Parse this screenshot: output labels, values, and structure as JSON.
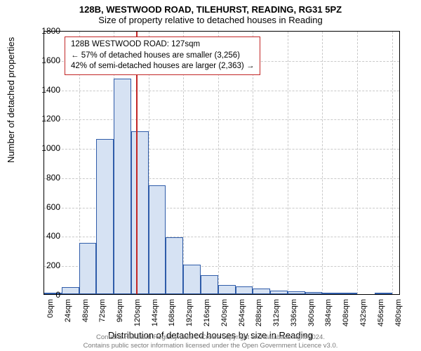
{
  "title": "128B, WESTWOOD ROAD, TILEHURST, READING, RG31 5PZ",
  "subtitle": "Size of property relative to detached houses in Reading",
  "ylabel": "Number of detached properties",
  "xlabel": "Distribution of detached houses by size in Reading",
  "chart": {
    "type": "histogram",
    "ylim_min": 0,
    "ylim_max": 1800,
    "ytick_step": 200,
    "yticks": [
      0,
      200,
      400,
      600,
      800,
      1000,
      1200,
      1400,
      1600,
      1800
    ],
    "xlim_min": 0,
    "xlim_max": 492,
    "xticks": [
      0,
      24,
      48,
      72,
      96,
      120,
      144,
      168,
      192,
      216,
      240,
      264,
      288,
      312,
      336,
      360,
      384,
      408,
      432,
      456,
      480
    ],
    "xtick_labels": [
      "0sqm",
      "24sqm",
      "48sqm",
      "72sqm",
      "96sqm",
      "120sqm",
      "144sqm",
      "168sqm",
      "192sqm",
      "216sqm",
      "240sqm",
      "264sqm",
      "288sqm",
      "312sqm",
      "336sqm",
      "360sqm",
      "384sqm",
      "408sqm",
      "432sqm",
      "456sqm",
      "480sqm"
    ],
    "bin_width": 24,
    "bars": [
      {
        "x0": 0,
        "count": 10
      },
      {
        "x0": 24,
        "count": 50
      },
      {
        "x0": 48,
        "count": 350
      },
      {
        "x0": 72,
        "count": 1060
      },
      {
        "x0": 96,
        "count": 1470
      },
      {
        "x0": 120,
        "count": 1110
      },
      {
        "x0": 144,
        "count": 740
      },
      {
        "x0": 168,
        "count": 390
      },
      {
        "x0": 192,
        "count": 200
      },
      {
        "x0": 216,
        "count": 130
      },
      {
        "x0": 240,
        "count": 60
      },
      {
        "x0": 264,
        "count": 55
      },
      {
        "x0": 288,
        "count": 40
      },
      {
        "x0": 312,
        "count": 25
      },
      {
        "x0": 336,
        "count": 20
      },
      {
        "x0": 360,
        "count": 15
      },
      {
        "x0": 384,
        "count": 10
      },
      {
        "x0": 408,
        "count": 8
      },
      {
        "x0": 432,
        "count": 0
      },
      {
        "x0": 456,
        "count": 6
      },
      {
        "x0": 480,
        "count": 0
      }
    ],
    "bar_fill": "#d6e2f3",
    "bar_stroke": "#2f5ca9",
    "grid_color": "#c9c9c9",
    "background_color": "#ffffff",
    "border_color": "#000000",
    "marker": {
      "x": 127,
      "color": "#c22626"
    }
  },
  "annotation": {
    "line1": "128B WESTWOOD ROAD: 127sqm",
    "line2": "← 57% of detached houses are smaller (3,256)",
    "line3": "42% of semi-detached houses are larger (2,363) →",
    "border_color": "#c22626",
    "bg_color": "#ffffff"
  },
  "footer": {
    "line1": "Contains HM Land Registry data © Crown copyright and database right 2024.",
    "line2": "Contains public sector information licensed under the Open Government Licence v3.0.",
    "color": "#7a7a7a"
  }
}
